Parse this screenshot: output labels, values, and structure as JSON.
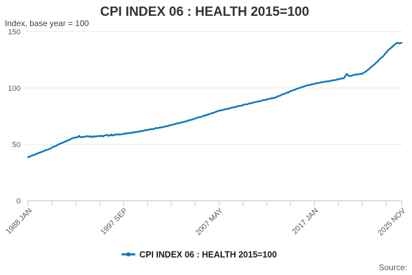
{
  "page": {
    "background": "#ffffff"
  },
  "footer": {
    "source_label": "Source:"
  },
  "colors": {
    "line": "#0e76bc",
    "grid": "#e6e6e6",
    "axis": "#c3cee3",
    "title": "#333333",
    "subtitle": "#414042",
    "tick_label": "#58595b",
    "legend_text": "#1a1a1a"
  },
  "chart_data": {
    "type": "line",
    "title": "CPI INDEX 06 : HEALTH 2015=100",
    "ylabel": "Index, base year = 100",
    "ylim": [
      0,
      150
    ],
    "yticks": [
      0,
      50,
      100,
      150
    ],
    "grid": "horizontal-only",
    "legend_position": "bottom-center",
    "x_unit": "months since 1988 JAN",
    "x_range_months": [
      0,
      454
    ],
    "minor_tick_interval_months": 29,
    "xtick_labels": [
      {
        "month": 0,
        "label": "1988 JAN"
      },
      {
        "month": 116,
        "label": "1997 SEP"
      },
      {
        "month": 232,
        "label": "2007 MAY"
      },
      {
        "month": 348,
        "label": "2017 JAN"
      },
      {
        "month": 454,
        "label": "2025 NOV"
      }
    ],
    "series": [
      {
        "name": "CPI INDEX 06 : HEALTH 2015=100",
        "color": "#0e76bc",
        "anchors_month_value": [
          [
            0,
            38.8
          ],
          [
            12,
            42.0
          ],
          [
            24,
            45.5
          ],
          [
            36,
            49.5
          ],
          [
            48,
            53.5
          ],
          [
            56,
            56.0
          ],
          [
            62,
            57.3
          ],
          [
            66,
            56.6
          ],
          [
            72,
            57.5
          ],
          [
            78,
            56.8
          ],
          [
            84,
            57.6
          ],
          [
            90,
            57.2
          ],
          [
            96,
            58.0
          ],
          [
            108,
            58.6
          ],
          [
            116,
            59.3
          ],
          [
            132,
            61.0
          ],
          [
            144,
            62.6
          ],
          [
            168,
            66.0
          ],
          [
            192,
            70.5
          ],
          [
            216,
            75.8
          ],
          [
            232,
            79.8
          ],
          [
            252,
            83.2
          ],
          [
            276,
            87.5
          ],
          [
            300,
            91.5
          ],
          [
            324,
            98.5
          ],
          [
            330,
            100.0
          ],
          [
            336,
            101.5
          ],
          [
            348,
            103.8
          ],
          [
            360,
            105.5
          ],
          [
            372,
            106.8
          ],
          [
            384,
            109.0
          ],
          [
            387,
            112.3
          ],
          [
            390,
            110.6
          ],
          [
            396,
            111.6
          ],
          [
            402,
            112.2
          ],
          [
            407,
            113.0
          ],
          [
            413,
            116.0
          ],
          [
            419,
            119.8
          ],
          [
            425,
            123.8
          ],
          [
            431,
            128.0
          ],
          [
            437,
            133.0
          ],
          [
            443,
            136.8
          ],
          [
            446,
            138.6
          ],
          [
            449,
            140.4
          ],
          [
            451,
            139.4
          ],
          [
            454,
            140.0
          ]
        ]
      }
    ]
  }
}
